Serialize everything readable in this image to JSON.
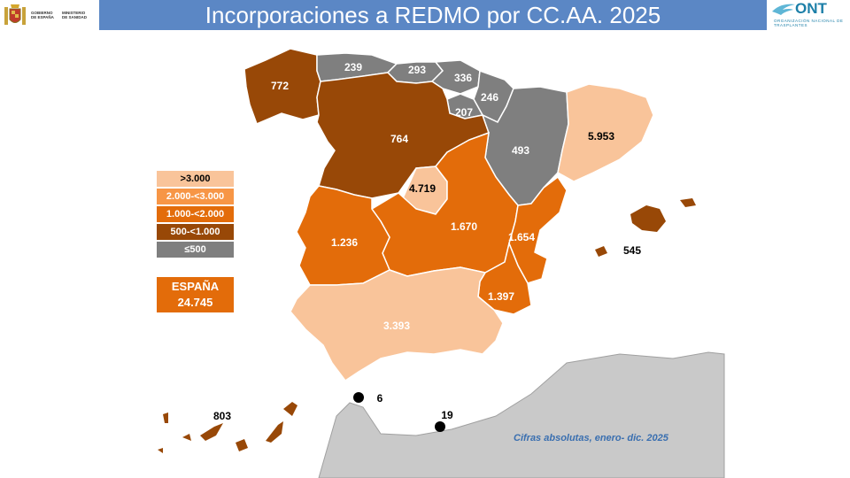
{
  "title": "Incorporaciones a REDMO por CC.AA. 2025",
  "government_logo": {
    "line1": "GOBIERNO",
    "line2": "DE ESPAÑA",
    "line3": "MINISTERIO",
    "line4": "DE SANIDAD"
  },
  "ont_logo": {
    "word": "ONT",
    "subtitle": "ORGANIZACIÓN NACIONAL DE TRASPLANTES"
  },
  "legend": [
    {
      "label": ">3.000",
      "color": "#f9c49a",
      "text_color": "#000000"
    },
    {
      "label": "2.000-<3.000",
      "color": "#f79646",
      "text_color": "#ffffff"
    },
    {
      "label": "1.000-<2.000",
      "color": "#e36c0a",
      "text_color": "#ffffff"
    },
    {
      "label": "500-<1.000",
      "color": "#984807",
      "text_color": "#ffffff"
    },
    {
      "label": "≤500",
      "color": "#7f7f7f",
      "text_color": "#ffffff"
    }
  ],
  "total": {
    "label": "ESPAÑA",
    "value": "24.745"
  },
  "regions": [
    {
      "name": "Galicia",
      "value": "772",
      "color": "#984807"
    },
    {
      "name": "Asturias",
      "value": "239",
      "color": "#7f7f7f"
    },
    {
      "name": "Cantabria",
      "value": "293",
      "color": "#7f7f7f"
    },
    {
      "name": "País Vasco",
      "value": "336",
      "color": "#7f7f7f"
    },
    {
      "name": "Navarra",
      "value": "246",
      "color": "#7f7f7f"
    },
    {
      "name": "La Rioja",
      "value": "207",
      "color": "#7f7f7f"
    },
    {
      "name": "Castilla y León",
      "value": "764",
      "color": "#984807"
    },
    {
      "name": "Aragón",
      "value": "493",
      "color": "#7f7f7f"
    },
    {
      "name": "Cataluña",
      "value": "5.953",
      "color": "#f9c49a"
    },
    {
      "name": "Madrid",
      "value": "4.719",
      "color": "#f9c49a"
    },
    {
      "name": "Castilla-La Mancha",
      "value": "1.670",
      "color": "#e36c0a"
    },
    {
      "name": "Comunidad Valenciana",
      "value": "1.654",
      "color": "#e36c0a"
    },
    {
      "name": "Extremadura",
      "value": "1.236",
      "color": "#e36c0a"
    },
    {
      "name": "Murcia",
      "value": "1.397",
      "color": "#e36c0a"
    },
    {
      "name": "Andalucía",
      "value": "3.393",
      "color": "#f9c49a"
    },
    {
      "name": "Baleares",
      "value": "545",
      "color": "#984807"
    },
    {
      "name": "Canarias",
      "value": "803",
      "color": "#984807"
    },
    {
      "name": "Ceuta",
      "value": "6",
      "color": "#000000"
    },
    {
      "name": "Melilla",
      "value": "19",
      "color": "#000000"
    }
  ],
  "footnote": "Cifras absolutas, enero- dic. 2025"
}
